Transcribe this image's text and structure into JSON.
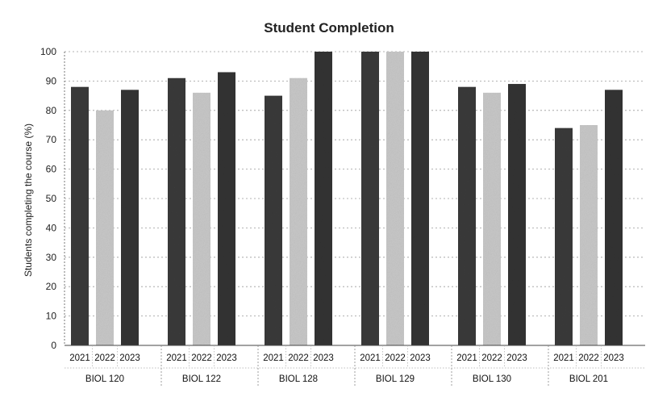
{
  "chart_data": {
    "type": "bar",
    "title": "Student Completion",
    "xlabel": "",
    "ylabel": "Students completing the course (%)",
    "ylim": [
      0,
      100
    ],
    "yticks": [
      0,
      10,
      20,
      30,
      40,
      50,
      60,
      70,
      80,
      90,
      100
    ],
    "grid": true,
    "legend": "none",
    "categories": [
      "BIOL 120",
      "BIOL 122",
      "BIOL 128",
      "BIOL 129",
      "BIOL 130",
      "BIOL 201"
    ],
    "series": [
      {
        "name": "2021",
        "color": "#3a3a3a",
        "values": [
          88,
          91,
          85,
          100,
          88,
          74
        ]
      },
      {
        "name": "2022",
        "color": "#c8c8c8",
        "values": [
          80,
          86,
          91,
          100,
          86,
          75
        ]
      },
      {
        "name": "2023",
        "color": "#333333",
        "values": [
          87,
          93,
          100,
          100,
          89,
          87
        ]
      }
    ]
  }
}
